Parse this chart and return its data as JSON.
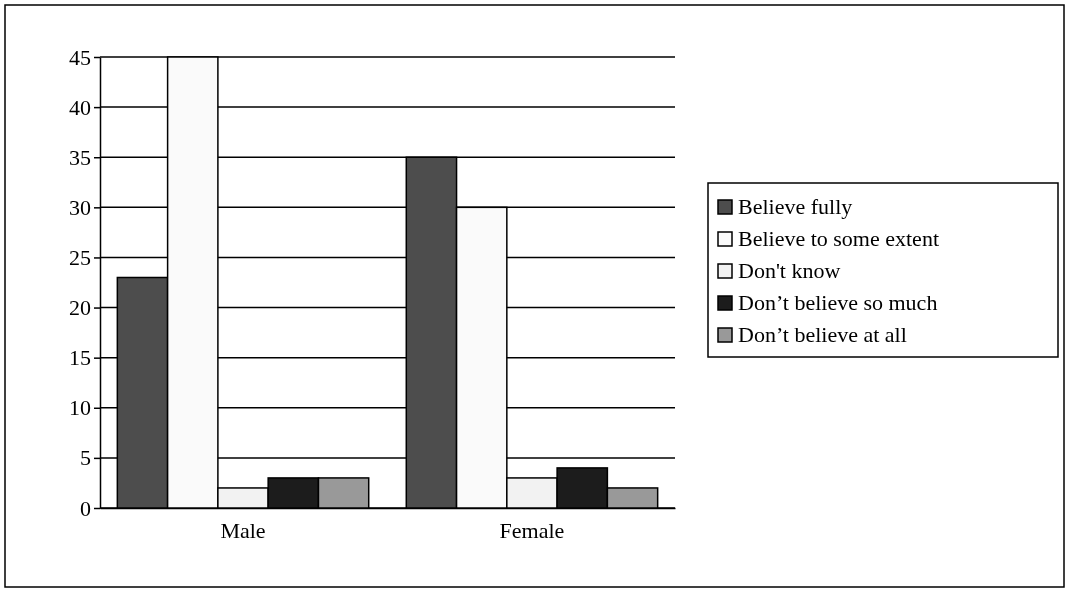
{
  "chart_data": {
    "type": "bar",
    "categories": [
      "Male",
      "Female"
    ],
    "series": [
      {
        "name": "Believe fully",
        "color": "#4d4d4d",
        "values": [
          23,
          35
        ]
      },
      {
        "name": "Believe to some extent",
        "color": "#fafafa",
        "values": [
          45,
          30
        ]
      },
      {
        "name": "Don't know",
        "color": "#f2f2f2",
        "values": [
          2,
          3
        ]
      },
      {
        "name": "Don’t believe so much",
        "color": "#1c1c1c",
        "values": [
          3,
          4
        ]
      },
      {
        "name": "Don’t believe at all",
        "color": "#999999",
        "values": [
          3,
          2
        ]
      }
    ],
    "ylim": [
      0,
      45
    ],
    "yticks": [
      0,
      5,
      10,
      15,
      20,
      25,
      30,
      35,
      40,
      45
    ],
    "grid": "y",
    "legend": "right"
  }
}
